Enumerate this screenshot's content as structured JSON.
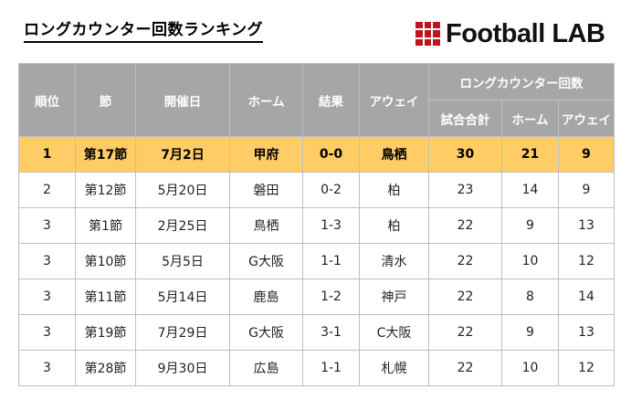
{
  "title": "ロングカウンター回数ランキング",
  "brand": {
    "logo_text": "Football LAB",
    "logo_color": "#c0141c"
  },
  "colors": {
    "header_bg": "#a6a6a6",
    "highlight_row_bg": "#ffcc66"
  },
  "table": {
    "headers": {
      "rank": "順位",
      "round": "節",
      "date": "開催日",
      "home": "ホーム",
      "result": "結果",
      "away": "アウェイ",
      "long_counter_group": "ロングカウンター回数",
      "match_total": "試合合計",
      "lc_home": "ホーム",
      "lc_away": "アウェイ"
    },
    "rows": [
      {
        "rank": "1",
        "round": "第17節",
        "date": "7月2日",
        "home": "甲府",
        "result": "0-0",
        "away": "鳥栖",
        "total": "30",
        "home_count": "21",
        "away_count": "9"
      },
      {
        "rank": "2",
        "round": "第12節",
        "date": "5月20日",
        "home": "磐田",
        "result": "0-2",
        "away": "柏",
        "total": "23",
        "home_count": "14",
        "away_count": "9"
      },
      {
        "rank": "3",
        "round": "第1節",
        "date": "2月25日",
        "home": "鳥栖",
        "result": "1-3",
        "away": "柏",
        "total": "22",
        "home_count": "9",
        "away_count": "13"
      },
      {
        "rank": "3",
        "round": "第10節",
        "date": "5月5日",
        "home": "G大阪",
        "result": "1-1",
        "away": "清水",
        "total": "22",
        "home_count": "10",
        "away_count": "12"
      },
      {
        "rank": "3",
        "round": "第11節",
        "date": "5月14日",
        "home": "鹿島",
        "result": "1-2",
        "away": "神戸",
        "total": "22",
        "home_count": "8",
        "away_count": "14"
      },
      {
        "rank": "3",
        "round": "第19節",
        "date": "7月29日",
        "home": "G大阪",
        "result": "3-1",
        "away": "C大阪",
        "total": "22",
        "home_count": "9",
        "away_count": "13"
      },
      {
        "rank": "3",
        "round": "第28節",
        "date": "9月30日",
        "home": "広島",
        "result": "1-1",
        "away": "札幌",
        "total": "22",
        "home_count": "10",
        "away_count": "12"
      }
    ]
  }
}
